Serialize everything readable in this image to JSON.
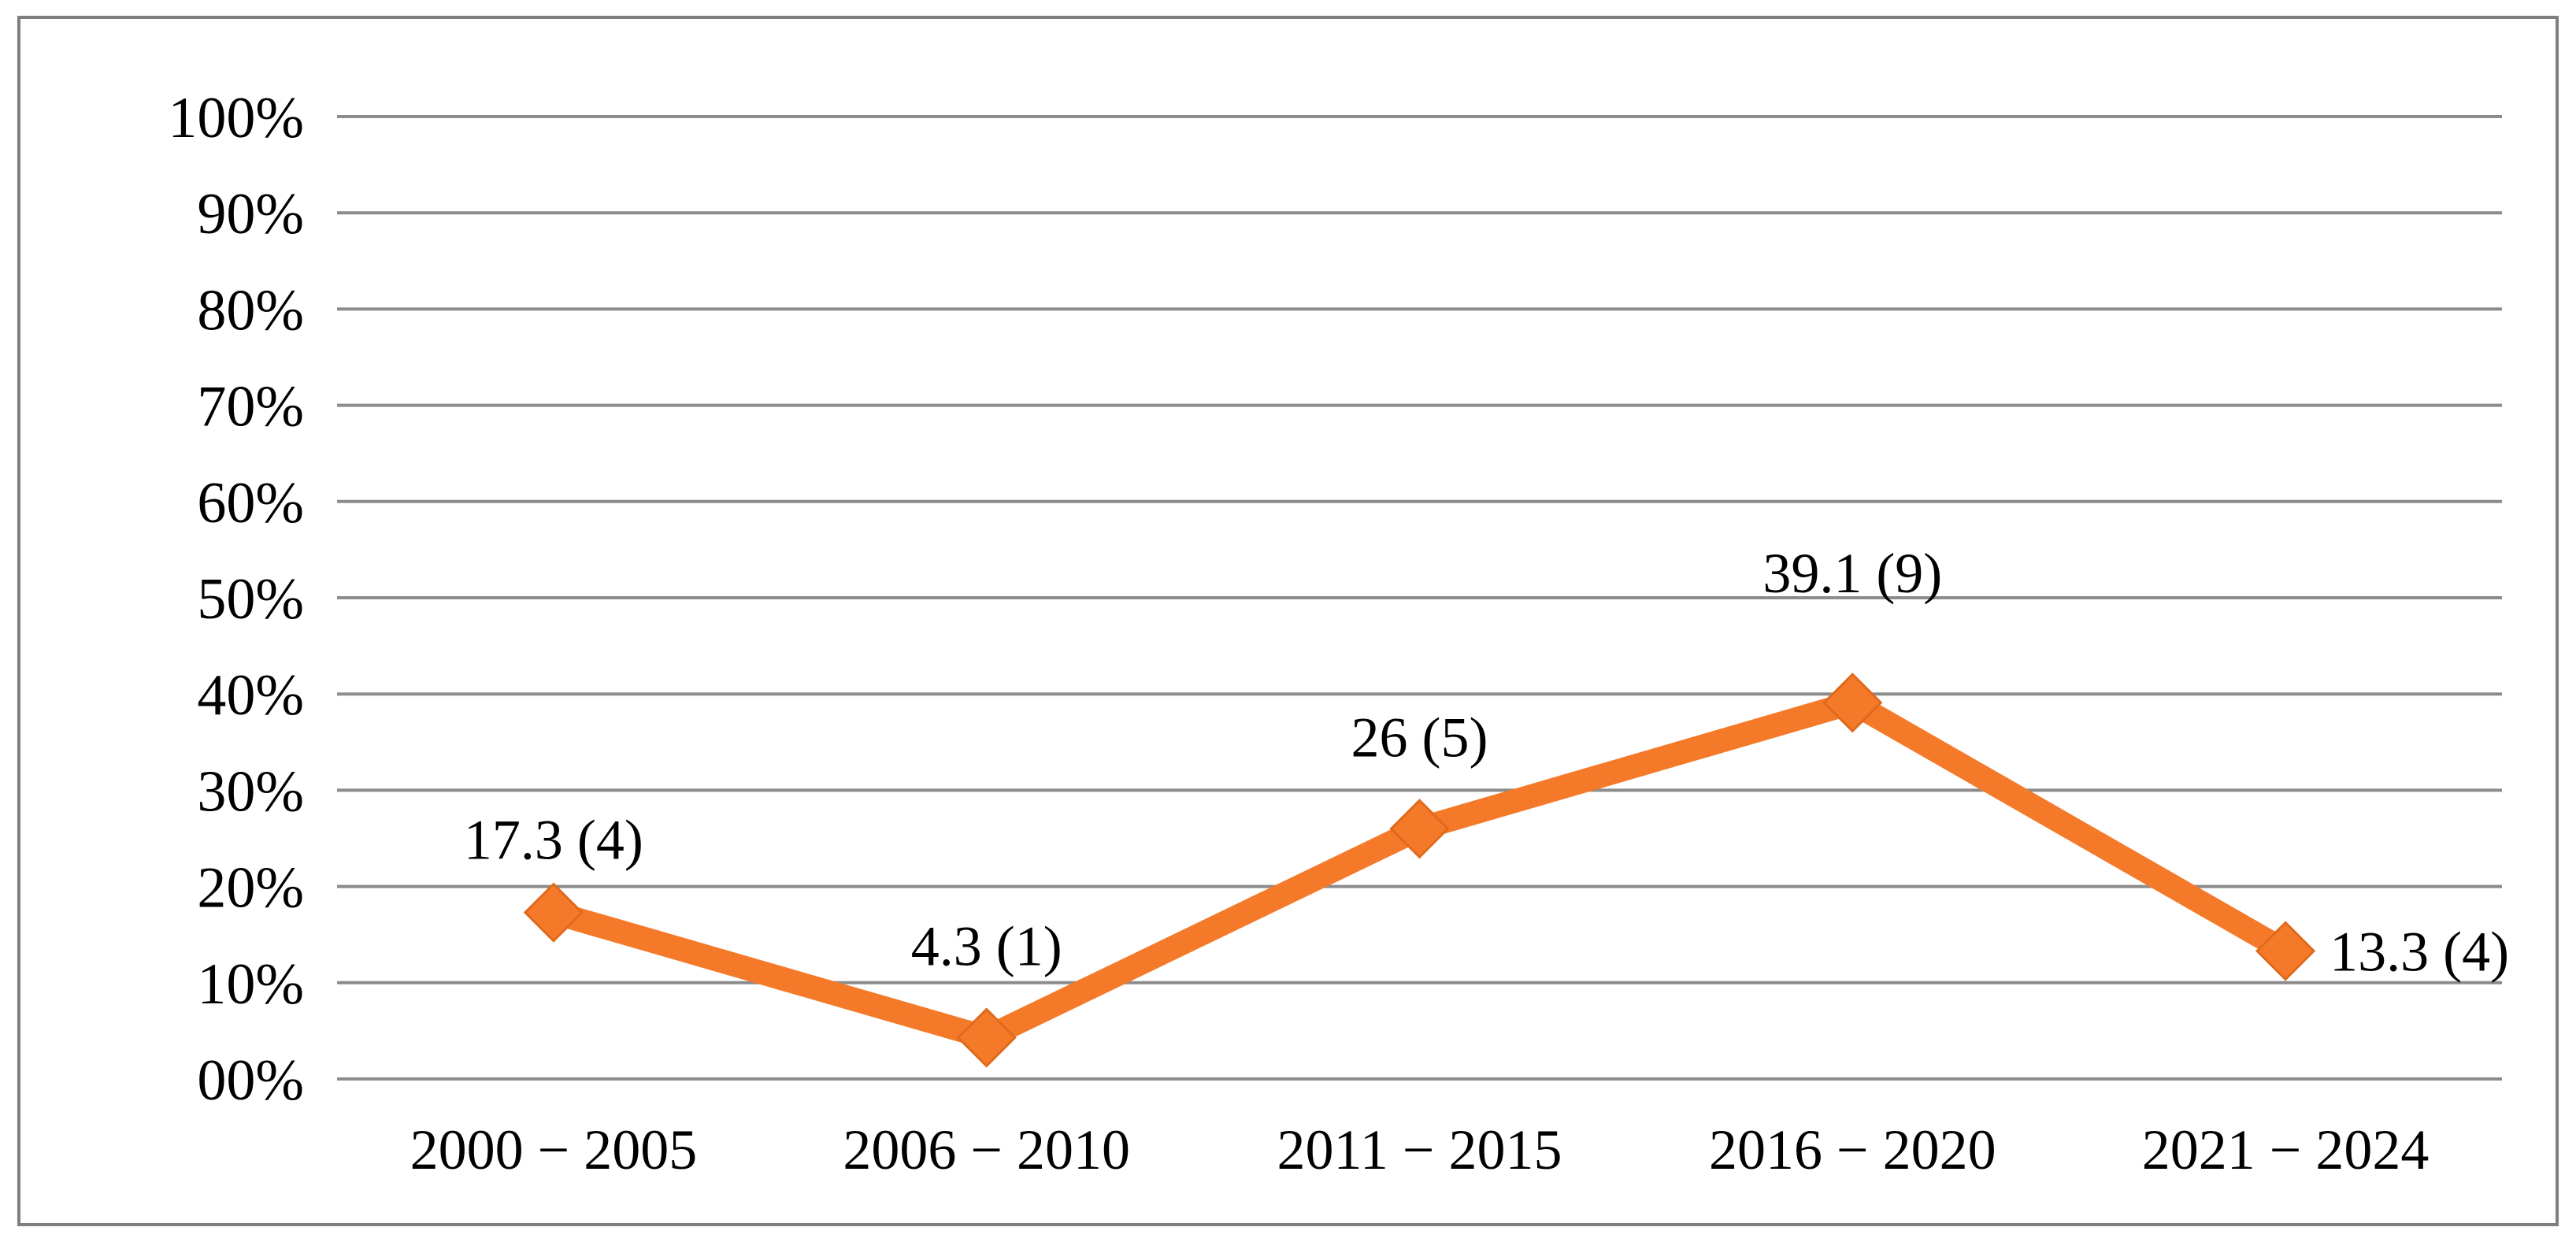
{
  "chart_data": {
    "type": "line",
    "title": "",
    "xlabel": "",
    "ylabel": "",
    "categories": [
      "2000 − 2005",
      "2006 − 2010",
      "2011 − 2015",
      "2016 − 2020",
      "2021 − 2024"
    ],
    "series": [
      {
        "values": [
          17.3,
          4.3,
          26,
          39.1,
          13.3
        ],
        "counts": [
          4,
          1,
          5,
          9,
          4
        ],
        "data_labels": [
          "17.3 (4)",
          "4.3 (1)",
          "26 (5)",
          "39.1 (9)",
          "13.3 (4)"
        ],
        "color": "#f47a2a",
        "marker": "diamond"
      }
    ],
    "ylim": [
      0,
      100
    ],
    "yticks": [
      0,
      10,
      20,
      30,
      40,
      50,
      60,
      70,
      80,
      90,
      100
    ],
    "ytick_labels": [
      "00%",
      "10%",
      "20%",
      "30%",
      "40%",
      "50%",
      "60%",
      "70%",
      "80%",
      "90%",
      "100%"
    ],
    "grid": true,
    "grid_color": "#8c8c8c",
    "legend": "none"
  }
}
